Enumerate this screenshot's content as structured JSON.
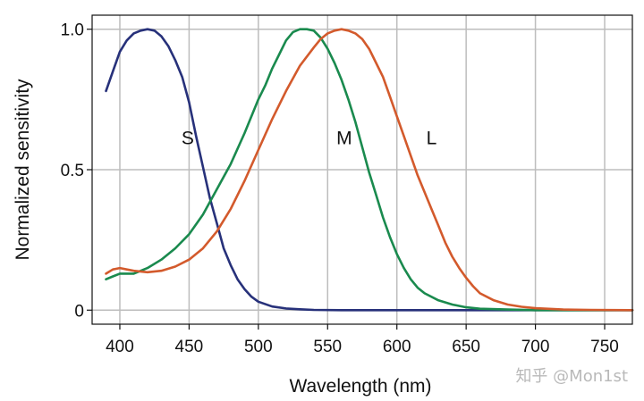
{
  "chart_data": {
    "type": "line",
    "title": "",
    "xlabel": "Wavelength (nm)",
    "ylabel": "Normalized sensitivity",
    "xlim": [
      380,
      770
    ],
    "ylim": [
      -0.05,
      1.05
    ],
    "xticks": [
      400,
      450,
      500,
      550,
      600,
      650,
      700,
      750
    ],
    "xtick_labels": [
      "400",
      "450",
      "500",
      "550",
      "600",
      "650",
      "700",
      "750"
    ],
    "yticks": [
      0,
      0.5,
      1.0
    ],
    "ytick_labels": [
      "0",
      "0.5",
      "1.0"
    ],
    "grid": true,
    "legend": "none",
    "series": [
      {
        "name": "S",
        "color": "#27317a",
        "label_at": [
          449,
          0.59
        ],
        "points": [
          [
            390,
            0.78
          ],
          [
            395,
            0.85
          ],
          [
            400,
            0.92
          ],
          [
            405,
            0.96
          ],
          [
            410,
            0.985
          ],
          [
            415,
            0.995
          ],
          [
            420,
            1.0
          ],
          [
            425,
            0.995
          ],
          [
            430,
            0.975
          ],
          [
            435,
            0.94
          ],
          [
            440,
            0.89
          ],
          [
            445,
            0.83
          ],
          [
            450,
            0.74
          ],
          [
            455,
            0.62
          ],
          [
            460,
            0.51
          ],
          [
            465,
            0.4
          ],
          [
            470,
            0.31
          ],
          [
            475,
            0.22
          ],
          [
            480,
            0.16
          ],
          [
            485,
            0.11
          ],
          [
            490,
            0.075
          ],
          [
            495,
            0.048
          ],
          [
            500,
            0.03
          ],
          [
            510,
            0.013
          ],
          [
            520,
            0.006
          ],
          [
            530,
            0.003
          ],
          [
            540,
            0.001
          ],
          [
            560,
            0.0
          ],
          [
            600,
            0.0
          ],
          [
            650,
            0.0
          ],
          [
            700,
            0.0
          ],
          [
            770,
            0.0
          ]
        ]
      },
      {
        "name": "M",
        "color": "#1a8a4e",
        "label_at": [
          562,
          0.59
        ],
        "points": [
          [
            390,
            0.11
          ],
          [
            395,
            0.12
          ],
          [
            400,
            0.13
          ],
          [
            410,
            0.13
          ],
          [
            420,
            0.15
          ],
          [
            430,
            0.18
          ],
          [
            440,
            0.22
          ],
          [
            450,
            0.27
          ],
          [
            460,
            0.34
          ],
          [
            470,
            0.43
          ],
          [
            480,
            0.52
          ],
          [
            490,
            0.63
          ],
          [
            500,
            0.75
          ],
          [
            505,
            0.8
          ],
          [
            510,
            0.86
          ],
          [
            515,
            0.91
          ],
          [
            520,
            0.96
          ],
          [
            525,
            0.99
          ],
          [
            530,
            1.0
          ],
          [
            535,
            1.0
          ],
          [
            540,
            0.995
          ],
          [
            545,
            0.97
          ],
          [
            550,
            0.93
          ],
          [
            555,
            0.88
          ],
          [
            560,
            0.82
          ],
          [
            565,
            0.75
          ],
          [
            570,
            0.67
          ],
          [
            575,
            0.58
          ],
          [
            580,
            0.49
          ],
          [
            585,
            0.41
          ],
          [
            590,
            0.33
          ],
          [
            595,
            0.26
          ],
          [
            600,
            0.2
          ],
          [
            605,
            0.15
          ],
          [
            610,
            0.11
          ],
          [
            615,
            0.08
          ],
          [
            620,
            0.06
          ],
          [
            630,
            0.035
          ],
          [
            640,
            0.02
          ],
          [
            650,
            0.01
          ],
          [
            660,
            0.005
          ],
          [
            680,
            0.002
          ],
          [
            700,
            0.0
          ],
          [
            770,
            0.0
          ]
        ]
      },
      {
        "name": "L",
        "color": "#d35a2c",
        "label_at": [
          625,
          0.59
        ],
        "points": [
          [
            390,
            0.13
          ],
          [
            395,
            0.145
          ],
          [
            400,
            0.15
          ],
          [
            405,
            0.145
          ],
          [
            410,
            0.14
          ],
          [
            420,
            0.135
          ],
          [
            430,
            0.14
          ],
          [
            440,
            0.155
          ],
          [
            450,
            0.18
          ],
          [
            460,
            0.22
          ],
          [
            470,
            0.28
          ],
          [
            480,
            0.36
          ],
          [
            490,
            0.46
          ],
          [
            500,
            0.57
          ],
          [
            510,
            0.68
          ],
          [
            520,
            0.78
          ],
          [
            530,
            0.87
          ],
          [
            540,
            0.935
          ],
          [
            545,
            0.965
          ],
          [
            550,
            0.985
          ],
          [
            555,
            0.995
          ],
          [
            560,
            1.0
          ],
          [
            565,
            0.995
          ],
          [
            570,
            0.985
          ],
          [
            575,
            0.965
          ],
          [
            580,
            0.93
          ],
          [
            585,
            0.88
          ],
          [
            590,
            0.83
          ],
          [
            595,
            0.76
          ],
          [
            600,
            0.69
          ],
          [
            605,
            0.62
          ],
          [
            610,
            0.55
          ],
          [
            615,
            0.48
          ],
          [
            620,
            0.42
          ],
          [
            625,
            0.36
          ],
          [
            630,
            0.3
          ],
          [
            635,
            0.24
          ],
          [
            640,
            0.19
          ],
          [
            645,
            0.15
          ],
          [
            650,
            0.115
          ],
          [
            655,
            0.085
          ],
          [
            660,
            0.06
          ],
          [
            670,
            0.035
          ],
          [
            680,
            0.02
          ],
          [
            690,
            0.012
          ],
          [
            700,
            0.007
          ],
          [
            720,
            0.002
          ],
          [
            740,
            0.001
          ],
          [
            770,
            0.0
          ]
        ]
      }
    ]
  },
  "watermark": "知乎 @Mon1st"
}
